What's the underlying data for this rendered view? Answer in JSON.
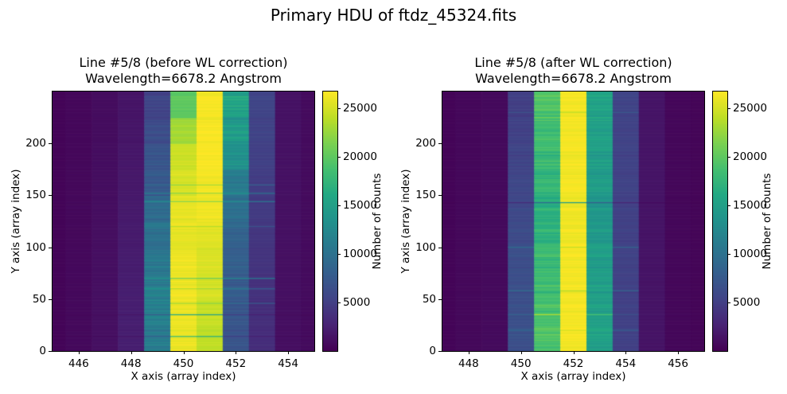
{
  "figure": {
    "suptitle": "Primary HDU of ftdz_45324.fits",
    "background": "#ffffff",
    "text_color": "#000000"
  },
  "colormap": {
    "name": "viridis",
    "stops": [
      "#440154",
      "#482475",
      "#414487",
      "#355f8d",
      "#2a788e",
      "#21918c",
      "#22a884",
      "#44bf70",
      "#7ad151",
      "#bdde26",
      "#fde725"
    ]
  },
  "chart_data": [
    {
      "id": "before",
      "type": "heatmap",
      "title": "Line #5/8 (before WL correction)\nWavelength=6678.2 Angstrom",
      "xlabel": "X axis (array index)",
      "ylabel": "Y axis (array index)",
      "xlim": [
        445,
        455
      ],
      "ylim": [
        0,
        250
      ],
      "x_ticks": [
        446,
        448,
        450,
        452,
        454
      ],
      "y_ticks": [
        0,
        50,
        100,
        150,
        200
      ],
      "columns_x": [
        445,
        446,
        447,
        448,
        449,
        450,
        451,
        452,
        453,
        454,
        455
      ],
      "row_bands": {
        "count": 10,
        "rows_per_band": 25,
        "order": "top_to_bottom"
      },
      "values": [
        [
          300,
          550,
          900,
          1500,
          5500,
          20000,
          26500,
          15500,
          5500,
          1300,
          800
        ],
        [
          300,
          550,
          900,
          1600,
          6200,
          23000,
          26500,
          14500,
          5300,
          1300,
          800
        ],
        [
          300,
          550,
          950,
          1700,
          6800,
          24500,
          26400,
          13000,
          5000,
          1250,
          800
        ],
        [
          300,
          600,
          1000,
          1800,
          7500,
          25200,
          26300,
          11000,
          4800,
          1250,
          800
        ],
        [
          300,
          600,
          1000,
          1900,
          9000,
          25600,
          26000,
          9500,
          4500,
          1200,
          800
        ],
        [
          300,
          600,
          1050,
          2000,
          10000,
          25800,
          25600,
          8500,
          4200,
          1200,
          800
        ],
        [
          300,
          620,
          1100,
          2100,
          10500,
          26000,
          25200,
          8000,
          4000,
          1150,
          800
        ],
        [
          300,
          620,
          1100,
          2200,
          11000,
          26000,
          25000,
          7500,
          3800,
          1150,
          800
        ],
        [
          300,
          650,
          1150,
          2300,
          11500,
          26000,
          24500,
          7200,
          3600,
          1100,
          800
        ],
        [
          300,
          650,
          1150,
          2300,
          11200,
          26000,
          24200,
          7000,
          3500,
          1100,
          800
        ]
      ],
      "stripes": [
        {
          "row": 160,
          "type": "blend",
          "amount": 0.3
        },
        {
          "row": 152,
          "type": "blend",
          "amount": 0.4
        },
        {
          "row": 144,
          "type": "blend",
          "amount": 0.45
        },
        {
          "row": 120,
          "type": "blend",
          "amount": 0.2
        },
        {
          "row": 70,
          "type": "blend",
          "amount": 0.55
        },
        {
          "row": 60,
          "type": "blend",
          "amount": 0.3
        },
        {
          "row": 46,
          "type": "blend",
          "amount": 0.3
        },
        {
          "row": 35,
          "type": "scale",
          "amount": 0.6
        },
        {
          "row": 14,
          "type": "scale",
          "amount": 0.7
        }
      ],
      "noise": {
        "seed": 3,
        "amplitude": 0.09,
        "column_noise": [
          0.2,
          0.3,
          0.4,
          0.8,
          1.8,
          0.35,
          0.3,
          1.5,
          0.8,
          0.4,
          0.3
        ]
      },
      "colorbar": {
        "label": "Number of counts",
        "ticks": [
          5000,
          10000,
          15000,
          20000,
          25000
        ],
        "vmin": 0,
        "vmax": 26700
      }
    },
    {
      "id": "after",
      "type": "heatmap",
      "title": "Line #5/8 (after WL correction)\nWavelength=6678.2 Angstrom",
      "xlabel": "X axis (array index)",
      "ylabel": "Y axis (array index)",
      "xlim": [
        447,
        457
      ],
      "ylim": [
        0,
        250
      ],
      "x_ticks": [
        448,
        450,
        452,
        454,
        456
      ],
      "y_ticks": [
        0,
        50,
        100,
        150,
        200
      ],
      "columns_x": [
        447,
        448,
        449,
        450,
        451,
        452,
        453,
        454,
        455,
        456,
        457
      ],
      "row_bands": {
        "count": 10,
        "rows_per_band": 25,
        "order": "top_to_bottom"
      },
      "values": [
        [
          300,
          550,
          700,
          5000,
          19500,
          26400,
          15500,
          5400,
          1500,
          500,
          350
        ],
        [
          300,
          550,
          700,
          5200,
          18500,
          26400,
          15200,
          5300,
          1500,
          500,
          350
        ],
        [
          300,
          550,
          700,
          5400,
          18000,
          26300,
          14800,
          5300,
          1480,
          500,
          350
        ],
        [
          300,
          560,
          710,
          5600,
          17400,
          26300,
          14500,
          5200,
          1460,
          500,
          350
        ],
        [
          300,
          560,
          710,
          5900,
          17000,
          26200,
          14200,
          5200,
          1450,
          500,
          350
        ],
        [
          300,
          570,
          720,
          6100,
          17200,
          26200,
          14300,
          5150,
          1440,
          500,
          350
        ],
        [
          300,
          570,
          720,
          6300,
          17800,
          26250,
          14500,
          5150,
          1430,
          500,
          350
        ],
        [
          300,
          580,
          730,
          6400,
          18300,
          26300,
          14800,
          5100,
          1420,
          500,
          350
        ],
        [
          300,
          580,
          740,
          6500,
          18800,
          26300,
          15000,
          5100,
          1420,
          500,
          350
        ],
        [
          300,
          590,
          750,
          6500,
          19000,
          26300,
          15000,
          5100,
          1420,
          500,
          350
        ]
      ],
      "stripes": [
        {
          "row": 230,
          "type": "blend",
          "amount": 0.2
        },
        {
          "row": 143,
          "type": "scale",
          "amount": 0.55
        },
        {
          "row": 100,
          "type": "blend",
          "amount": 0.25
        },
        {
          "row": 58,
          "type": "blend",
          "amount": 0.3
        },
        {
          "row": 35,
          "type": "scale",
          "amount": 1.25
        },
        {
          "row": 20,
          "type": "blend",
          "amount": 0.2
        }
      ],
      "noise": {
        "seed": 11,
        "amplitude": 0.09,
        "column_noise": [
          0.2,
          0.3,
          0.5,
          1.2,
          1.1,
          0.3,
          1.1,
          1.0,
          0.5,
          0.3,
          0.2
        ]
      },
      "colorbar": {
        "label": "Number of counts",
        "ticks": [
          5000,
          10000,
          15000,
          20000,
          25000
        ],
        "vmin": 0,
        "vmax": 26700
      }
    }
  ]
}
